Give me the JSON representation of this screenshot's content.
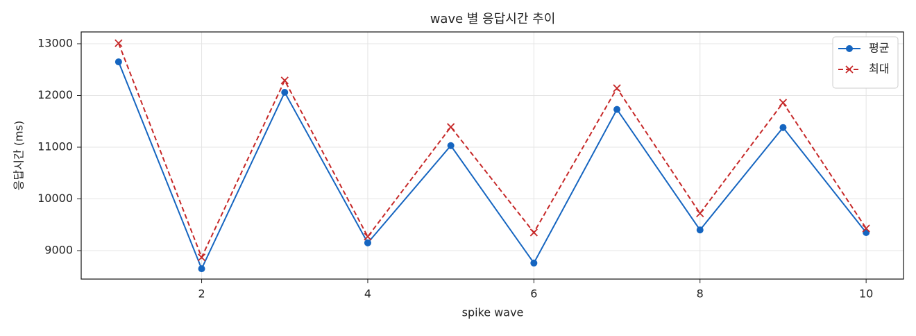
{
  "chart_data": {
    "type": "line",
    "title": "wave 별 응답시간 추이",
    "x_label": "spike wave",
    "y_label": "응답시간 (ms)",
    "x": [
      1,
      2,
      3,
      4,
      5,
      6,
      7,
      8,
      9,
      10
    ],
    "series": [
      {
        "name": "평균",
        "color": "#1565c0",
        "marker": "circle",
        "dash": "solid",
        "values": [
          12650,
          8650,
          12060,
          9150,
          11030,
          8760,
          11730,
          9400,
          11380,
          9350
        ]
      },
      {
        "name": "최대",
        "color": "#c62828",
        "marker": "x",
        "dash": "dashed",
        "values": [
          13010,
          8870,
          12290,
          9270,
          11390,
          9350,
          12140,
          9720,
          11860,
          9430
        ]
      }
    ],
    "xlim": [
      0.55,
      10.45
    ],
    "xticks": [
      2,
      4,
      6,
      8,
      10
    ],
    "ylim": [
      8450,
      13228
    ],
    "yticks": [
      9000,
      10000,
      11000,
      12000,
      13000
    ],
    "grid": true,
    "legend": "upper right"
  }
}
